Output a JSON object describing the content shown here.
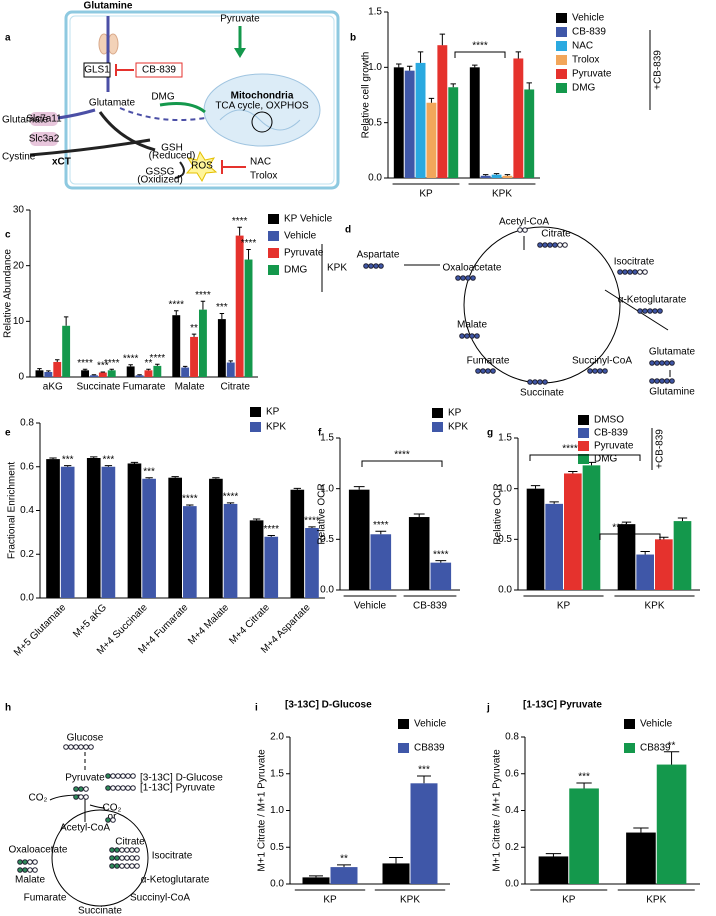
{
  "chart_data": [
    {
      "type": "bar",
      "label": "b",
      "ylabel": "Relative cell growth",
      "categories": [
        "KP",
        "KPK"
      ],
      "series": [
        {
          "name": "Vehicle",
          "color": "#000000",
          "values": [
            1.0,
            1.0
          ],
          "errors": [
            0.03,
            0.02
          ]
        },
        {
          "name": "CB-839",
          "color": "#3f57a8",
          "values": [
            0.97,
            0.02
          ],
          "errors": [
            0.04,
            0.01
          ]
        },
        {
          "name": "NAC",
          "color": "#2aa9e0",
          "values": [
            1.04,
            0.03
          ],
          "errors": [
            0.1,
            0.01
          ]
        },
        {
          "name": "Trolox",
          "color": "#f2a65a",
          "values": [
            0.68,
            0.02
          ],
          "errors": [
            0.04,
            0.01
          ]
        },
        {
          "name": "Pyruvate",
          "color": "#e5322d",
          "values": [
            1.2,
            1.08
          ],
          "errors": [
            0.1,
            0.06
          ]
        },
        {
          "name": "DMG",
          "color": "#14984c",
          "values": [
            0.82,
            0.8
          ],
          "errors": [
            0.03,
            0.06
          ]
        }
      ],
      "ylim": [
        0,
        1.5
      ],
      "yticks": [
        {
          "value": 0,
          "label": "0.0"
        },
        0.5,
        {
          "value": 1,
          "label": "1.0"
        },
        1.5
      ],
      "annotations": [
        "****"
      ],
      "legend_note": "+CB-839"
    },
    {
      "type": "bar",
      "label": "c",
      "ylabel": "Relative Abundance",
      "categories": [
        "aKG",
        "Succinate",
        "Fumarate",
        "Malate",
        "Citrate"
      ],
      "series": [
        {
          "name": "KP Vehicle",
          "color": "#000000",
          "values": [
            1.2,
            1.2,
            1.9,
            11.1,
            10.4
          ],
          "errors": [
            0.3,
            0.2,
            0.3,
            0.8,
            1.0
          ],
          "stars": [
            null,
            "****",
            "****",
            "****",
            "***"
          ]
        },
        {
          "name": "Vehicle",
          "color": "#3f57a8",
          "values": [
            0.9,
            0.3,
            0.3,
            1.7,
            2.6
          ],
          "errors": [
            0.2,
            0.1,
            0.1,
            0.2,
            0.3
          ]
        },
        {
          "name": "Pyruvate",
          "color": "#e5322d",
          "values": [
            2.7,
            0.8,
            1.2,
            7.2,
            25.4
          ],
          "errors": [
            0.4,
            0.1,
            0.2,
            0.5,
            1.5
          ],
          "stars": [
            null,
            "***",
            "**",
            "**",
            "****"
          ]
        },
        {
          "name": "DMG",
          "color": "#14984c",
          "values": [
            9.2,
            1.2,
            2.0,
            12.1,
            21.1
          ],
          "errors": [
            1.6,
            0.2,
            0.3,
            1.5,
            1.8
          ],
          "stars": [
            null,
            "****",
            "****",
            "****",
            "****"
          ]
        }
      ],
      "ylim": [
        0,
        30
      ],
      "yticks": [
        0,
        10,
        20,
        30
      ],
      "legend_note": "KPK"
    },
    {
      "type": "bar",
      "label": "e",
      "ylabel": "Fractional Enrichment",
      "categories": [
        "M+5 Glutamate",
        "M+5 aKG",
        "M+4 Succinate",
        "M+4 Fumarate",
        "M+4 Malate",
        "M+4 Citrate",
        "M+4 Aspartate"
      ],
      "series": [
        {
          "name": "KP",
          "color": "#000000",
          "values": [
            0.635,
            0.64,
            0.615,
            0.55,
            0.545,
            0.355,
            0.495
          ],
          "errors": [
            0.005,
            0.005,
            0.005,
            0.005,
            0.005,
            0.006,
            0.006
          ]
        },
        {
          "name": "KPK",
          "color": "#3f57a8",
          "values": [
            0.6,
            0.6,
            0.545,
            0.42,
            0.43,
            0.28,
            0.32
          ],
          "errors": [
            0.005,
            0.005,
            0.005,
            0.005,
            0.005,
            0.006,
            0.005
          ],
          "stars": [
            "***",
            "***",
            "***",
            "****",
            "****",
            "****",
            "****"
          ]
        }
      ],
      "ylim": [
        0,
        0.8
      ],
      "yticks": [
        {
          "value": 0,
          "label": "0.0"
        },
        0.2,
        0.4,
        0.6,
        0.8
      ]
    },
    {
      "type": "bar",
      "label": "f",
      "ylabel": "Relative OCR",
      "categories": [
        "Vehicle",
        "CB-839"
      ],
      "series": [
        {
          "name": "KP",
          "color": "#000000",
          "values": [
            0.99,
            0.72
          ],
          "errors": [
            0.03,
            0.03
          ]
        },
        {
          "name": "KPK",
          "color": "#3f57a8",
          "values": [
            0.55,
            0.27
          ],
          "errors": [
            0.03,
            0.02
          ],
          "stars": [
            "****",
            "****"
          ]
        }
      ],
      "ylim": [
        0,
        1.5
      ],
      "yticks": [
        {
          "value": 0,
          "label": "0.0"
        },
        0.5,
        {
          "value": 1,
          "label": "1.0"
        },
        1.5
      ],
      "annotations": [
        "****"
      ]
    },
    {
      "type": "bar",
      "label": "g",
      "ylabel": "Relative OCR",
      "categories": [
        "KP",
        "KPK"
      ],
      "series": [
        {
          "name": "DMSO",
          "color": "#000000",
          "values": [
            1.0,
            0.65
          ],
          "errors": [
            0.03,
            0.02
          ]
        },
        {
          "name": "CB-839",
          "color": "#3f57a8",
          "values": [
            0.85,
            0.35
          ],
          "errors": [
            0.02,
            0.03
          ]
        },
        {
          "name": "Pyruvate",
          "color": "#e5322d",
          "values": [
            1.15,
            0.5
          ],
          "errors": [
            0.02,
            0.02
          ]
        },
        {
          "name": "DMG",
          "color": "#14984c",
          "values": [
            1.23,
            0.68
          ],
          "errors": [
            0.03,
            0.03
          ]
        }
      ],
      "ylim": [
        0,
        1.5
      ],
      "yticks": [
        {
          "value": 0,
          "label": "0.0"
        },
        0.5,
        {
          "value": 1,
          "label": "1.0"
        },
        1.5
      ],
      "annotations": [
        "****",
        "****"
      ],
      "legend_note": "+CB-839"
    },
    {
      "type": "bar",
      "label": "i",
      "title": "[3-13C] D-Glucose",
      "ylabel": "M+1 Citrate / M+1 Pyruvate",
      "categories": [
        "KP",
        "KPK"
      ],
      "series": [
        {
          "name": "Vehicle",
          "color": "#000000",
          "values": [
            0.09,
            0.28
          ],
          "errors": [
            0.02,
            0.08
          ]
        },
        {
          "name": "CB839",
          "color": "#3f57a8",
          "values": [
            0.23,
            1.37
          ],
          "errors": [
            0.03,
            0.1
          ],
          "stars": [
            "**",
            "***"
          ]
        }
      ],
      "ylim": [
        0,
        2
      ],
      "yticks": [
        {
          "value": 0,
          "label": "0.0"
        },
        0.5,
        {
          "value": 1,
          "label": "1.0"
        },
        1.5,
        {
          "value": 2,
          "label": "2.0"
        }
      ]
    },
    {
      "type": "bar",
      "label": "j",
      "title": "[1-13C] Pyruvate",
      "ylabel": "M+1 Citrate / M+1 Pyruvate",
      "categories": [
        "KP",
        "KPK"
      ],
      "series": [
        {
          "name": "Vehicle",
          "color": "#000000",
          "values": [
            0.15,
            0.28
          ],
          "errors": [
            0.015,
            0.025
          ]
        },
        {
          "name": "CB839",
          "color": "#14984c",
          "values": [
            0.52,
            0.65
          ],
          "errors": [
            0.03,
            0.07
          ],
          "stars": [
            "***",
            "**"
          ]
        }
      ],
      "ylim": [
        0,
        0.8
      ],
      "yticks": [
        {
          "value": 0,
          "label": "0.0"
        },
        0.2,
        0.4,
        0.6,
        0.8
      ]
    }
  ],
  "diagrams": {
    "a": {
      "texts": [
        "a",
        "Glutamine",
        "GLS1",
        "CB-839",
        "Pyruvate",
        "Glutamate",
        "DMG",
        "Mitochondria",
        "TCA cycle, OXPHOS",
        "Glutamate",
        "Slc7a11",
        "Slc3a2",
        "Cystine",
        "xCT",
        "GSH",
        "(Reduced)",
        "GSSG",
        "(Oxidized)",
        "ROS",
        "NAC",
        "Trolox"
      ]
    },
    "d": {
      "texts": [
        "d",
        "Acetyl-CoA",
        "Citrate",
        "Isocitrate",
        "Aspartate",
        "Oxaloacetate",
        "α-Ketoglutarate",
        "Malate",
        "Glutamate",
        "Fumarate",
        "Succinyl-CoA",
        "Glutamine",
        "Succinate"
      ]
    },
    "h": {
      "texts": [
        "h",
        "Glucose",
        "Pyruvate",
        "[3-13C] D-Glucose",
        "[1-13C] Pyruvate",
        "CO₂",
        "CO₂",
        "or",
        "Acetyl-CoA",
        "Citrate",
        "Oxaloacetate",
        "Isocitrate",
        "Malate",
        "α-Ketoglutarate",
        "Fumarate",
        "Succinyl-CoA",
        "Succinate"
      ]
    }
  }
}
